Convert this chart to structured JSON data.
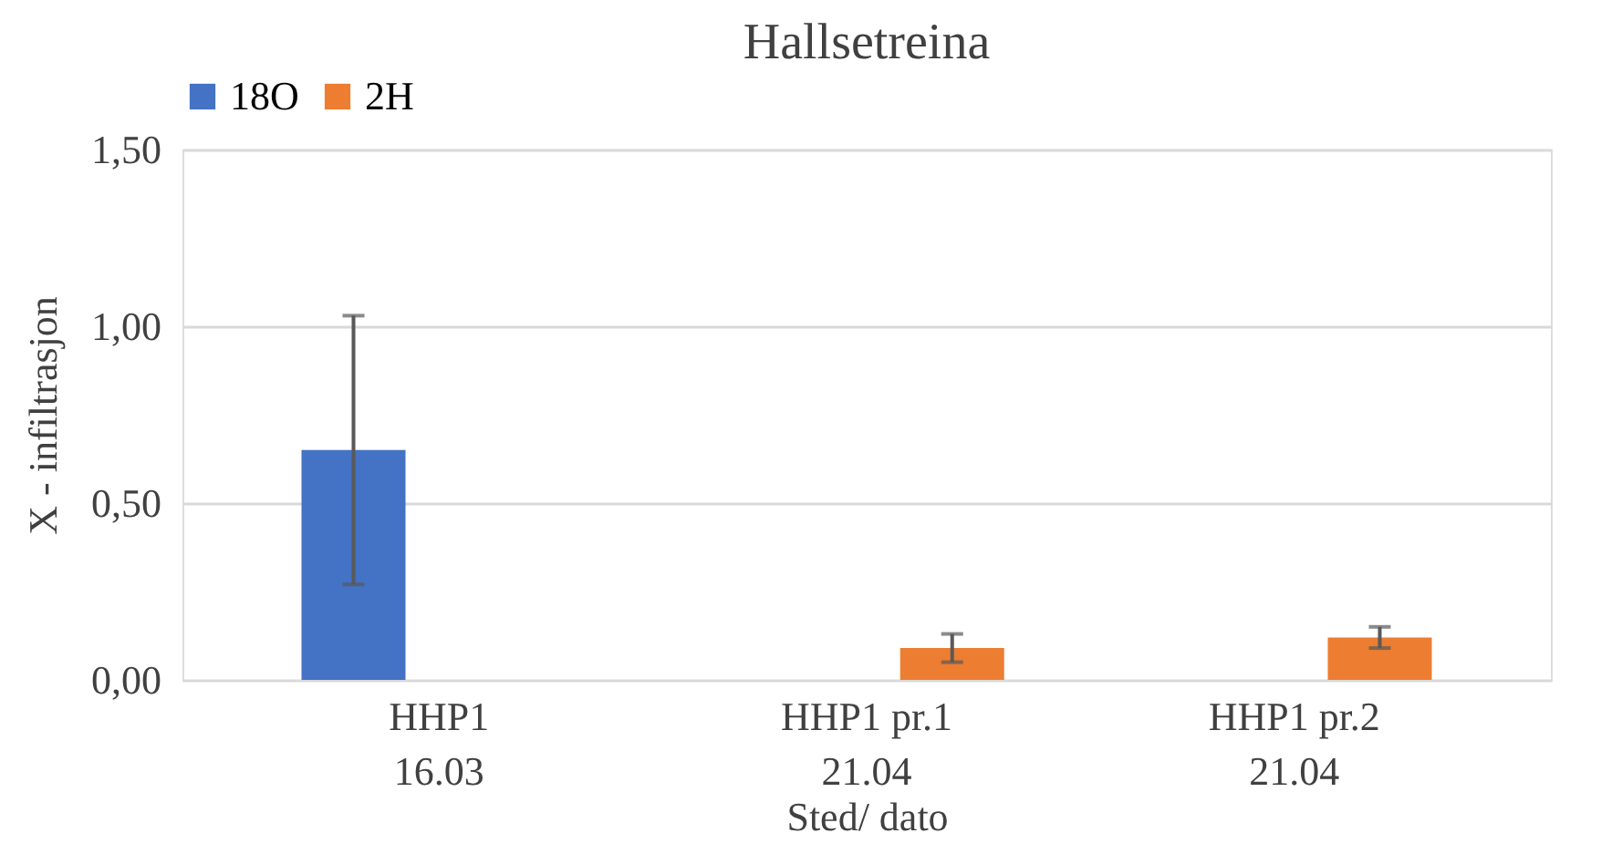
{
  "chart_data": {
    "type": "bar",
    "title": "Hallsetreina",
    "xlabel": "Sted/ dato",
    "ylabel": "X - infiltrasjon",
    "categories": [
      "HHP1\n16.03",
      "HHP1 pr.1\n21.04",
      "HHP1 pr.2\n21.04"
    ],
    "series": [
      {
        "name": "18O",
        "color": "#4472c4",
        "values": [
          0.65,
          null,
          null
        ],
        "errors": [
          0.38,
          null,
          null
        ]
      },
      {
        "name": "2H",
        "color": "#ed7d31",
        "values": [
          null,
          0.09,
          0.12
        ],
        "errors": [
          null,
          0.04,
          0.03
        ]
      }
    ],
    "ylim": [
      0,
      1.5
    ],
    "yticks": [
      {
        "value": 0,
        "label": "0,00"
      },
      {
        "value": 0.5,
        "label": "0,50"
      },
      {
        "value": 1,
        "label": "1,00"
      },
      {
        "value": 1.5,
        "label": "1,50"
      }
    ],
    "grid": "y",
    "legend": "top"
  }
}
